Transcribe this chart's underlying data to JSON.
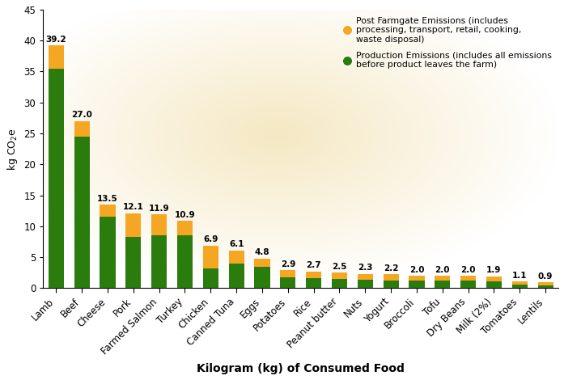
{
  "categories": [
    "Lamb",
    "Beef",
    "Cheese",
    "Pork",
    "Farmed Salmon",
    "Turkey",
    "Chicken",
    "Canned Tuna",
    "Eggs",
    "Potatoes",
    "Rice",
    "Peanut butter",
    "Nuts",
    "Yogurt",
    "Broccoli",
    "Tofu",
    "Dry Beans",
    "Milk (2%)",
    "Tomatoes",
    "Lentils"
  ],
  "totals": [
    39.2,
    27.0,
    13.5,
    12.1,
    11.9,
    10.9,
    6.9,
    6.1,
    4.8,
    2.9,
    2.7,
    2.5,
    2.3,
    2.2,
    2.0,
    2.0,
    2.0,
    1.9,
    1.1,
    0.9
  ],
  "production": [
    35.5,
    24.5,
    11.5,
    8.3,
    8.6,
    8.5,
    3.2,
    3.9,
    3.5,
    1.7,
    1.6,
    1.5,
    1.3,
    1.2,
    1.2,
    1.2,
    1.2,
    1.1,
    0.5,
    0.4
  ],
  "post_farmgate_color": "#F5A623",
  "production_color": "#2A7D0C",
  "background_color_outer": "#FFFFFF",
  "ylabel": "kg CO₂e",
  "xlabel": "Kilogram (kg) of Consumed Food",
  "ylim": [
    0,
    45
  ],
  "yticks": [
    0,
    5,
    10,
    15,
    20,
    25,
    30,
    35,
    40,
    45
  ],
  "legend_orange_label": "Post Farmgate Emissions (includes\nprocessing, transport, retail, cooking,\nwaste disposal)",
  "legend_green_label": "Production Emissions (includes all emissions\nbefore product leaves the farm)",
  "label_fontsize": 9,
  "tick_fontsize": 8.5
}
